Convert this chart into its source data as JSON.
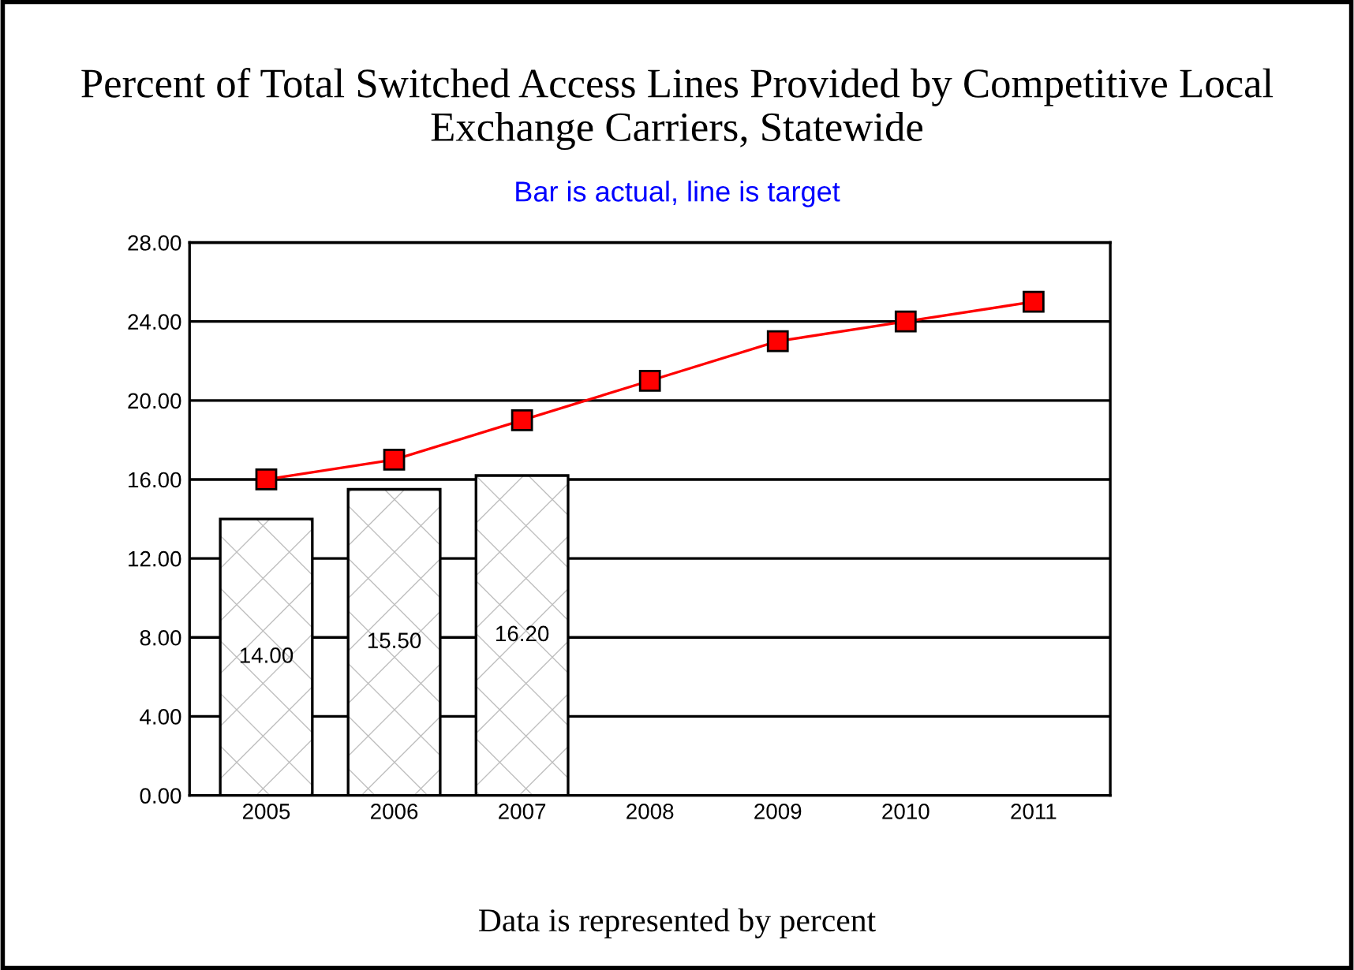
{
  "chart_data": {
    "type": "bar",
    "title": "Percent of Total Switched Access Lines Provided by Competitive Local Exchange Carriers, Statewide",
    "subtitle": "Bar is actual, line is target",
    "categories": [
      "2005",
      "2006",
      "2007",
      "2008",
      "2009",
      "2010",
      "2011"
    ],
    "series": [
      {
        "color": "#ffffff",
        "values": [
          14.0,
          15.5,
          16.2,
          null,
          null,
          null,
          null
        ],
        "value_labels": [
          "14.00",
          "15.50",
          "16.20",
          null,
          null,
          null,
          null
        ]
      },
      {
        "type": "line",
        "color": "#ff0000",
        "values": [
          16,
          17,
          19,
          21,
          23,
          24,
          25
        ],
        "marker": "square"
      }
    ],
    "ylim": [
      0,
      28
    ],
    "yticks": [
      {
        "value": 0,
        "label": "0.00"
      },
      {
        "value": 4,
        "label": "4.00"
      },
      {
        "value": 8,
        "label": "8.00"
      },
      {
        "value": 12,
        "label": "12.00"
      },
      {
        "value": 16,
        "label": "16.00"
      },
      {
        "value": 20,
        "label": "20.00"
      },
      {
        "value": 24,
        "label": "24.00"
      },
      {
        "value": 28,
        "label": "28.00"
      }
    ],
    "grid": "y",
    "legend": false,
    "annotations": [
      "Data is represented by percent"
    ]
  }
}
